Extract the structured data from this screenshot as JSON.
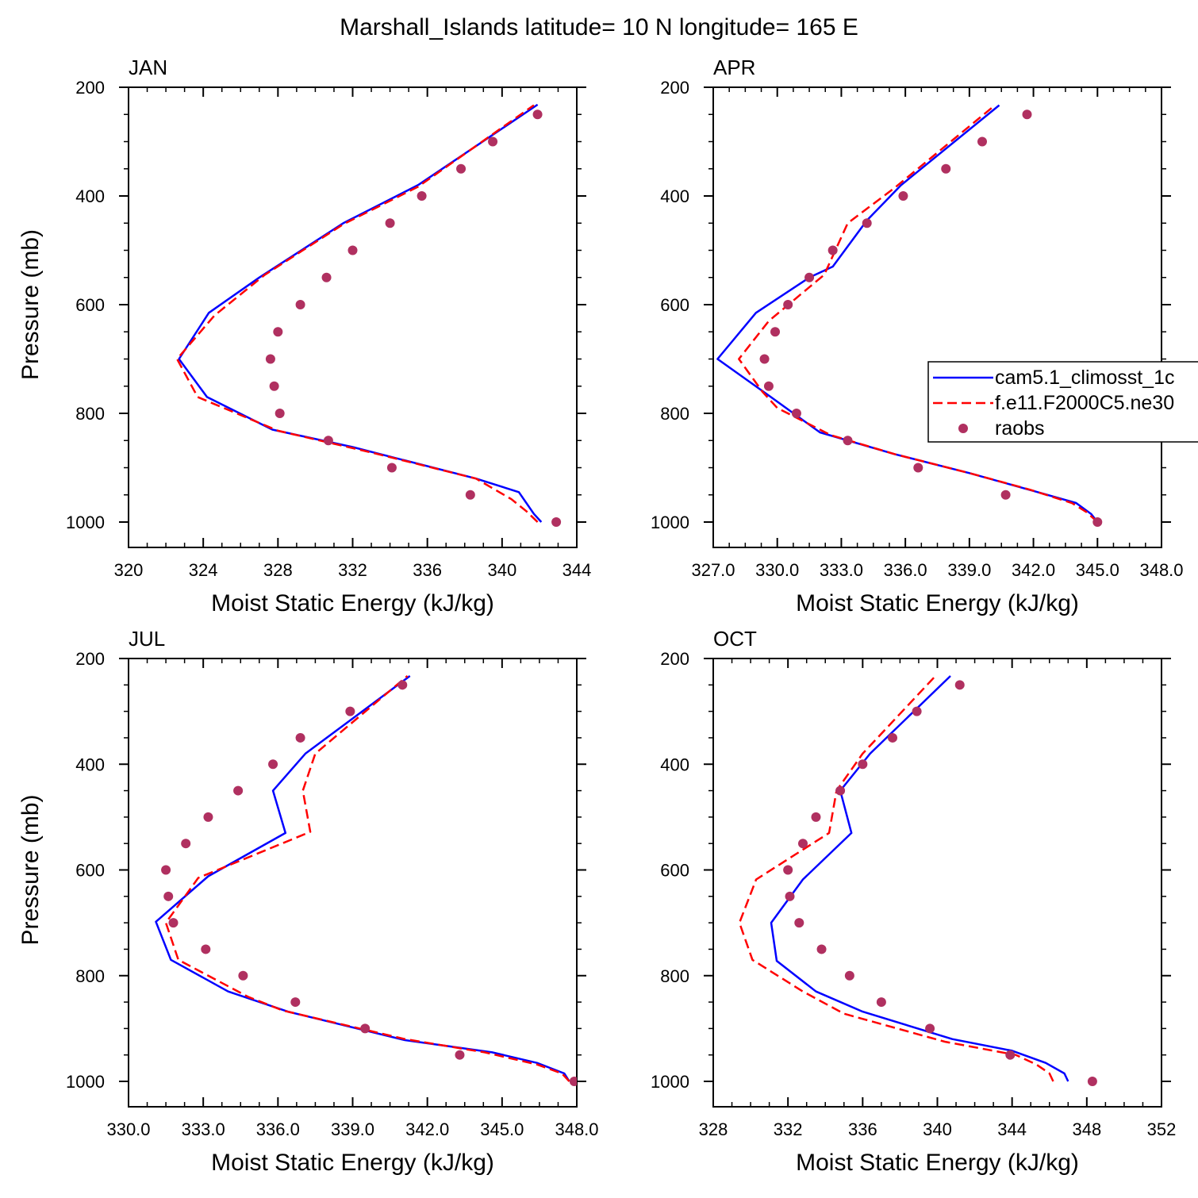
{
  "title": "Marshall_Islands  latitude= 10 N longitude= 165 E",
  "colors": {
    "model1": "#0000ff",
    "model2": "#ff0000",
    "obs": "#b03060"
  },
  "legend": {
    "placement": "right-middle of APR panel, clipped at right edge",
    "entries": [
      {
        "label": "cam5.1_climosst_1c",
        "style": "solid",
        "color": "#0000ff"
      },
      {
        "label": "f.e11.F2000C5.ne30",
        "style": "dashed",
        "color": "#ff0000"
      },
      {
        "label": "raobs",
        "style": "marker",
        "color": "#b03060"
      }
    ]
  },
  "chart_data": [
    {
      "type": "line",
      "panel": "JAN",
      "xlabel": "Moist Static Energy (kJ/kg)",
      "ylabel": "Pressure (mb)",
      "xlim": [
        320,
        344
      ],
      "ylim": [
        200,
        1000
      ],
      "y_inverted": false,
      "xticks": [
        "320",
        "324",
        "328",
        "332",
        "336",
        "340",
        "344"
      ],
      "yticks": [
        "200",
        "400",
        "600",
        "800",
        "1000"
      ],
      "series": [
        {
          "name": "cam5.1_climosst_1c",
          "style": "solid",
          "color": "#0000ff",
          "points": [
            [
              342.1,
              1000
            ],
            [
              341.7,
              985
            ],
            [
              340.9,
              945
            ],
            [
              338.6,
              920
            ],
            [
              332.0,
              862
            ],
            [
              327.7,
              830
            ],
            [
              324.2,
              770
            ],
            [
              322.7,
              700
            ],
            [
              324.3,
              615
            ],
            [
              327.0,
              550
            ],
            [
              331.5,
              450
            ],
            [
              335.5,
              380
            ],
            [
              341.9,
              232
            ]
          ]
        },
        {
          "name": "f.e11.F2000C5.ne30",
          "style": "dashed",
          "color": "#ff0000",
          "points": [
            [
              341.9,
              1000
            ],
            [
              341.3,
              980
            ],
            [
              340.5,
              958
            ],
            [
              338.6,
              920
            ],
            [
              333.0,
              872
            ],
            [
              328.0,
              832
            ],
            [
              323.7,
              770
            ],
            [
              322.6,
              700
            ],
            [
              324.6,
              620
            ],
            [
              327.3,
              545
            ],
            [
              331.5,
              452
            ],
            [
              335.5,
              383
            ],
            [
              341.7,
              233
            ]
          ]
        },
        {
          "name": "raobs",
          "style": "marker",
          "color": "#b03060",
          "points": [
            [
              342.9,
              1000
            ],
            [
              338.3,
              950
            ],
            [
              334.1,
              900
            ],
            [
              330.7,
              850
            ],
            [
              328.1,
              800
            ],
            [
              327.8,
              750
            ],
            [
              327.6,
              700
            ],
            [
              328.0,
              650
            ],
            [
              329.2,
              600
            ],
            [
              330.6,
              550
            ],
            [
              332.0,
              500
            ],
            [
              334.0,
              450
            ],
            [
              335.7,
              400
            ],
            [
              337.8,
              350
            ],
            [
              339.5,
              300
            ],
            [
              341.9,
              250
            ]
          ]
        }
      ]
    },
    {
      "type": "line",
      "panel": "APR",
      "xlabel": "Moist Static Energy (kJ/kg)",
      "ylabel": "",
      "xlim": [
        327,
        348
      ],
      "ylim": [
        200,
        1000
      ],
      "xticks": [
        "327.0",
        "330.0",
        "333.0",
        "336.0",
        "339.0",
        "342.0",
        "345.0",
        "348.0"
      ],
      "yticks": [
        "200",
        "400",
        "600",
        "800",
        "1000"
      ],
      "series": [
        {
          "name": "cam5.1_climosst_1c",
          "style": "solid",
          "color": "#0000ff",
          "points": [
            [
              345.0,
              1000
            ],
            [
              344.7,
              985
            ],
            [
              344.0,
              965
            ],
            [
              342.2,
              945
            ],
            [
              339.0,
              910
            ],
            [
              335.5,
              875
            ],
            [
              332.0,
              835
            ],
            [
              329.7,
              770
            ],
            [
              327.2,
              700
            ],
            [
              329.0,
              615
            ],
            [
              331.5,
              550
            ],
            [
              332.6,
              530
            ],
            [
              334.2,
              445
            ],
            [
              335.8,
              380
            ],
            [
              340.4,
              233
            ]
          ]
        },
        {
          "name": "f.e11.F2000C5.ne30",
          "style": "dashed",
          "color": "#ff0000",
          "points": [
            [
              345.0,
              1000
            ],
            [
              344.5,
              982
            ],
            [
              343.8,
              965
            ],
            [
              341.8,
              940
            ],
            [
              339.0,
              910
            ],
            [
              335.5,
              875
            ],
            [
              332.5,
              840
            ],
            [
              330.0,
              790
            ],
            [
              329.3,
              760
            ],
            [
              328.2,
              700
            ],
            [
              329.6,
              630
            ],
            [
              332.2,
              545
            ],
            [
              333.3,
              450
            ],
            [
              335.5,
              385
            ],
            [
              340.2,
              233
            ]
          ]
        },
        {
          "name": "raobs",
          "style": "marker",
          "color": "#b03060",
          "points": [
            [
              345.0,
              1000
            ],
            [
              340.7,
              950
            ],
            [
              336.6,
              900
            ],
            [
              333.3,
              850
            ],
            [
              330.9,
              800
            ],
            [
              329.6,
              750
            ],
            [
              329.4,
              700
            ],
            [
              329.9,
              650
            ],
            [
              330.5,
              600
            ],
            [
              331.5,
              550
            ],
            [
              332.6,
              500
            ],
            [
              334.2,
              450
            ],
            [
              335.9,
              400
            ],
            [
              337.9,
              350
            ],
            [
              339.6,
              300
            ],
            [
              341.7,
              250
            ]
          ]
        }
      ]
    },
    {
      "type": "line",
      "panel": "JUL",
      "xlabel": "Moist Static Energy (kJ/kg)",
      "ylabel": "Pressure (mb)",
      "xlim": [
        330,
        348
      ],
      "ylim": [
        200,
        1000
      ],
      "xticks": [
        "330.0",
        "333.0",
        "336.0",
        "339.0",
        "342.0",
        "345.0",
        "348.0"
      ],
      "yticks": [
        "200",
        "400",
        "600",
        "800",
        "1000"
      ],
      "series": [
        {
          "name": "cam5.1_climosst_1c",
          "style": "solid",
          "color": "#0000ff",
          "points": [
            [
              347.7,
              1000
            ],
            [
              347.5,
              985
            ],
            [
              346.4,
              965
            ],
            [
              344.6,
              945
            ],
            [
              341.1,
              922
            ],
            [
              336.4,
              868
            ],
            [
              334.0,
              830
            ],
            [
              331.7,
              770
            ],
            [
              331.1,
              698
            ],
            [
              333.2,
              612
            ],
            [
              336.3,
              530
            ],
            [
              335.8,
              450
            ],
            [
              337.1,
              380
            ],
            [
              341.3,
              233
            ]
          ]
        },
        {
          "name": "f.e11.F2000C5.ne30",
          "style": "dashed",
          "color": "#ff0000",
          "points": [
            [
              347.7,
              1000
            ],
            [
              347.4,
              985
            ],
            [
              346.4,
              968
            ],
            [
              344.3,
              945
            ],
            [
              341.1,
              920
            ],
            [
              336.2,
              866
            ],
            [
              334.8,
              840
            ],
            [
              332.0,
              770
            ],
            [
              331.5,
              700
            ],
            [
              332.8,
              615
            ],
            [
              337.3,
              528
            ],
            [
              337.0,
              450
            ],
            [
              337.5,
              380
            ],
            [
              341.2,
              233
            ]
          ]
        },
        {
          "name": "raobs",
          "style": "marker",
          "color": "#b03060",
          "points": [
            [
              347.9,
              1000
            ],
            [
              343.3,
              950
            ],
            [
              339.5,
              900
            ],
            [
              336.7,
              850
            ],
            [
              334.6,
              800
            ],
            [
              333.1,
              750
            ],
            [
              331.8,
              700
            ],
            [
              331.6,
              650
            ],
            [
              331.5,
              600
            ],
            [
              332.3,
              550
            ],
            [
              333.2,
              500
            ],
            [
              334.4,
              450
            ],
            [
              335.8,
              400
            ],
            [
              336.9,
              350
            ],
            [
              338.9,
              300
            ],
            [
              341.0,
              250
            ]
          ]
        }
      ]
    },
    {
      "type": "line",
      "panel": "OCT",
      "xlabel": "Moist Static Energy (kJ/kg)",
      "ylabel": "",
      "xlim": [
        328,
        352
      ],
      "ylim": [
        200,
        1000
      ],
      "xticks": [
        "328",
        "332",
        "336",
        "340",
        "344",
        "348",
        "352"
      ],
      "yticks": [
        "200",
        "400",
        "600",
        "800",
        "1000"
      ],
      "series": [
        {
          "name": "cam5.1_climosst_1c",
          "style": "solid",
          "color": "#0000ff",
          "points": [
            [
              347.0,
              1000
            ],
            [
              346.8,
              985
            ],
            [
              345.8,
              965
            ],
            [
              344.0,
              942
            ],
            [
              340.8,
              920
            ],
            [
              336.0,
              868
            ],
            [
              333.5,
              830
            ],
            [
              331.4,
              772
            ],
            [
              331.1,
              700
            ],
            [
              332.8,
              618
            ],
            [
              335.4,
              530
            ],
            [
              334.8,
              450
            ],
            [
              336.4,
              380
            ],
            [
              340.7,
              233
            ]
          ]
        },
        {
          "name": "f.e11.F2000C5.ne30",
          "style": "dashed",
          "color": "#ff0000",
          "points": [
            [
              346.2,
              1000
            ],
            [
              346.0,
              985
            ],
            [
              345.3,
              968
            ],
            [
              344.2,
              950
            ],
            [
              340.4,
              925
            ],
            [
              335.0,
              872
            ],
            [
              332.8,
              830
            ],
            [
              330.1,
              770
            ],
            [
              329.4,
              700
            ],
            [
              330.3,
              618
            ],
            [
              334.2,
              530
            ],
            [
              334.6,
              450
            ],
            [
              336.0,
              380
            ],
            [
              339.9,
              233
            ]
          ]
        },
        {
          "name": "raobs",
          "style": "marker",
          "color": "#b03060",
          "points": [
            [
              348.3,
              1000
            ],
            [
              343.9,
              950
            ],
            [
              339.6,
              900
            ],
            [
              337.0,
              850
            ],
            [
              335.3,
              800
            ],
            [
              333.8,
              750
            ],
            [
              332.6,
              700
            ],
            [
              332.1,
              650
            ],
            [
              332.0,
              600
            ],
            [
              332.8,
              550
            ],
            [
              333.5,
              500
            ],
            [
              334.8,
              450
            ],
            [
              336.0,
              400
            ],
            [
              337.6,
              350
            ],
            [
              338.9,
              300
            ],
            [
              341.2,
              250
            ]
          ]
        }
      ]
    }
  ]
}
